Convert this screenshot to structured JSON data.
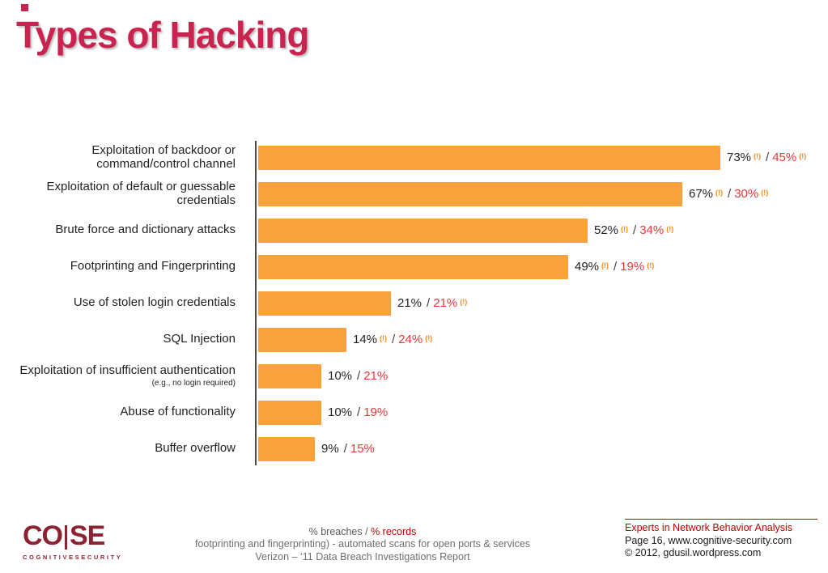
{
  "page": {
    "title": "Types of Hacking"
  },
  "chart_data": {
    "type": "bar",
    "orientation": "horizontal",
    "title": "Types of Hacking",
    "legend": "% breaches / % records",
    "xlim": [
      0,
      78
    ],
    "grid": false,
    "bar_color": "#F9A23C",
    "breaches_color": "#231F20",
    "records_color": "#E5393B",
    "flag_color": "#F28A20",
    "flag_label": "(!)",
    "rows": [
      {
        "label": "Exploitation of backdoor or command/control channel",
        "sublabel": "",
        "breaches": 73,
        "breaches_flag": true,
        "records": 45,
        "records_flag": true
      },
      {
        "label": "Exploitation of default or guessable credentials",
        "sublabel": "",
        "breaches": 67,
        "breaches_flag": true,
        "records": 30,
        "records_flag": true
      },
      {
        "label": "Brute force and dictionary attacks",
        "sublabel": "",
        "breaches": 52,
        "breaches_flag": true,
        "records": 34,
        "records_flag": true
      },
      {
        "label": "Footprinting and Fingerprinting",
        "sublabel": "",
        "breaches": 49,
        "breaches_flag": true,
        "records": 19,
        "records_flag": true
      },
      {
        "label": "Use of stolen login credentials",
        "sublabel": "",
        "breaches": 21,
        "breaches_flag": false,
        "records": 21,
        "records_flag": true
      },
      {
        "label": "SQL Injection",
        "sublabel": "",
        "breaches": 14,
        "breaches_flag": true,
        "records": 24,
        "records_flag": true
      },
      {
        "label": "Exploitation of insufficient authentication",
        "sublabel": "(e.g., no login required)",
        "breaches": 10,
        "breaches_flag": false,
        "records": 21,
        "records_flag": false
      },
      {
        "label": "Abuse of functionality",
        "sublabel": "",
        "breaches": 10,
        "breaches_flag": false,
        "records": 19,
        "records_flag": false
      },
      {
        "label": "Buffer overflow",
        "sublabel": "",
        "breaches": 9,
        "breaches_flag": false,
        "records": 15,
        "records_flag": false
      }
    ]
  },
  "footer": {
    "logo": {
      "left": "CO",
      "right": "SE",
      "subtext": "COGNITIVESECURITY"
    },
    "center": {
      "legend_breaches": "% breaches /",
      "legend_records": "% records",
      "note": "footprinting and fingerprinting)  - automated scans for open ports & services",
      "source": "Verizon – ‘11 Data Breach Investigations Report"
    },
    "right": {
      "tagline": "Experts in Network Behavior Analysis",
      "page_ref": "Page 16, www.cognitive-security.com",
      "copyright": "© 2012, gdusil.wordpress.com"
    }
  }
}
